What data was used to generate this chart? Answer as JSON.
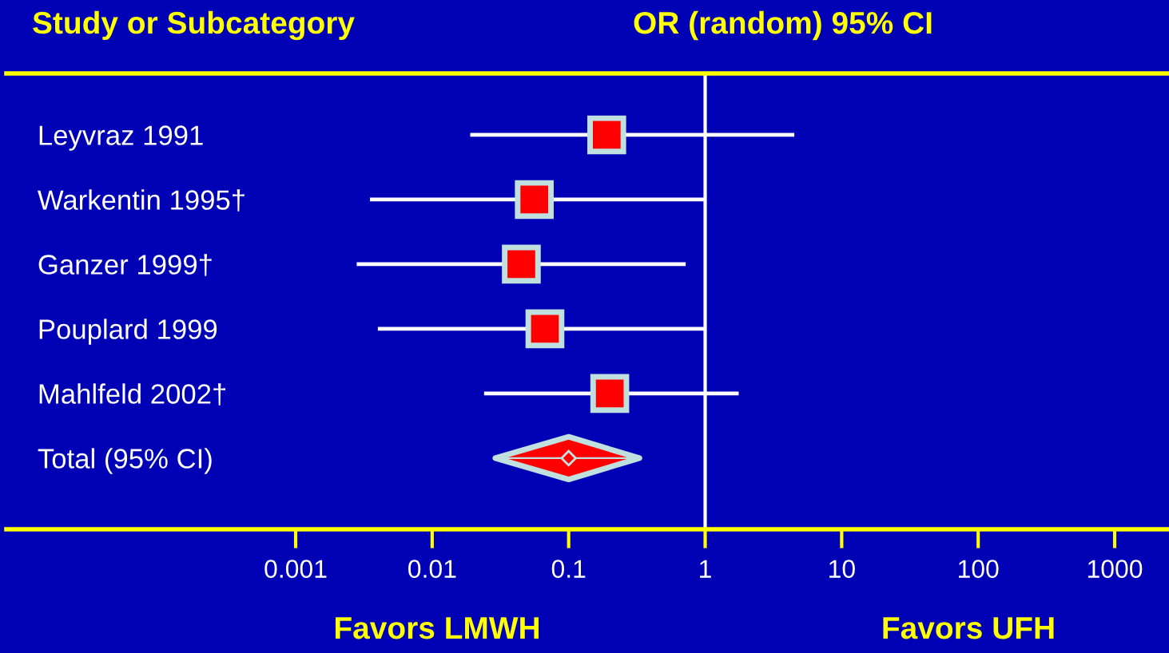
{
  "chart_data": {
    "type": "scatter",
    "orientation": "horizontal",
    "title": "Study or Subcategory",
    "annotations": [
      "OR (random) 95% CI",
      "Favors LMWH",
      "Favors UFH"
    ],
    "categories": [
      "Leyvraz 1991",
      "Warkentin 1995†",
      "Ganzer 1999†",
      "Pouplard 1999",
      "Mahlfeld 2002†",
      "Total (95% CI)"
    ],
    "series": [
      {
        "color": "#ff0000",
        "marker": "square",
        "values": [
          0.19,
          0.056,
          0.045,
          0.067,
          0.2,
          null
        ],
        "errors": [
          [
            0.019,
            4.5
          ],
          [
            0.0035,
            1.0
          ],
          [
            0.0028,
            0.72
          ],
          [
            0.004,
            1.0
          ],
          [
            0.024,
            1.76
          ],
          null
        ]
      },
      {
        "color": "#ff0000",
        "marker": "diamond",
        "values": [
          null,
          null,
          null,
          null,
          null,
          0.1
        ],
        "errors": [
          null,
          null,
          null,
          null,
          null,
          [
            0.029,
            0.33
          ]
        ]
      }
    ],
    "log": "x",
    "xlim": [
      7.6e-06,
      2500
    ],
    "xticks": [
      0.001,
      0.01,
      0.1,
      1,
      10,
      100,
      1000
    ],
    "ref_lines": [
      {
        "axis": "x",
        "value": 1,
        "color": "#ffffff"
      }
    ],
    "grid": false
  }
}
